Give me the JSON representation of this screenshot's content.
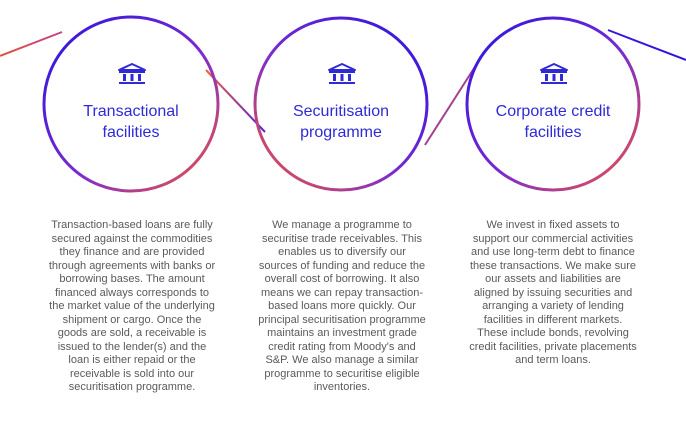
{
  "colors": {
    "ring_start": "#2b14e0",
    "ring_end": "#f0583c",
    "title_text": "#2f2ad6",
    "body_text": "#5a5a5a"
  },
  "items": [
    {
      "icon": "bank-icon",
      "title_line1": "Transactional",
      "title_line2": "facilities",
      "description": "Transaction-based loans are fully secured against the commodities they finance and are provided through agreements with banks or borrowing bases. The amount financed always corresponds to the market value of the underlying shipment or cargo. Once the goods are sold, a receivable is issued to the lender(s) and the loan is either repaid or the receivable is sold into our securitisation programme."
    },
    {
      "icon": "bank-icon",
      "title_line1": "Securitisation",
      "title_line2": "programme",
      "description": "We manage a programme to securitise trade receivables. This enables us to diversify our sources of funding and reduce the overall cost of borrowing. It also means we can repay transaction-based loans more quickly. Our principal securitisation programme maintains an investment grade credit rating from Moody's and S&P. We also manage a similar programme to securitise eligible inventories."
    },
    {
      "icon": "bank-icon",
      "title_line1": "Corporate credit",
      "title_line2": "facilities",
      "description": "We invest in fixed assets to support our commercial activities and use long-term debt to finance these transactions. We make sure our assets and liabilities are aligned by issuing securities and arranging a variety of lending facilities in different markets. These include bonds, revolving credit facilities, private placements and term loans."
    }
  ]
}
